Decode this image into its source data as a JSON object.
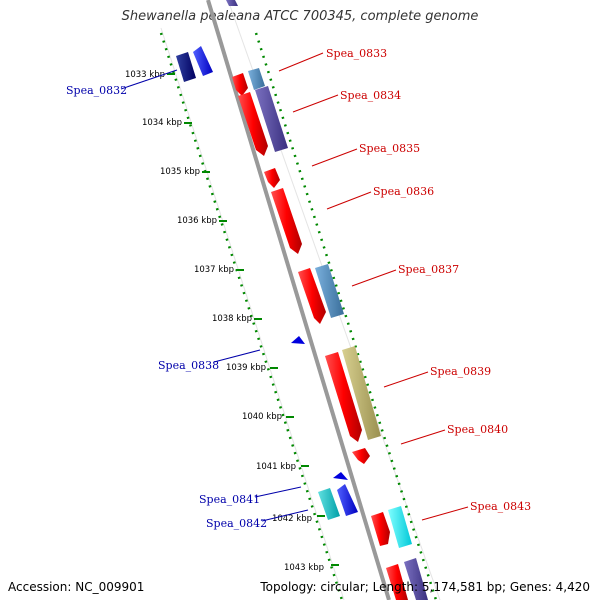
{
  "title": "Shewanella pealeana ATCC 700345, complete genome",
  "accession": "Accession: NC_009901",
  "summary": "Topology: circular; Length: 5,174,581 bp; Genes: 4,420",
  "colors": {
    "forward_label": "#cc0000",
    "reverse_label": "#0000aa",
    "backbone": "#999999",
    "ticks": "#008800"
  },
  "kbp_labels": [
    "1033 kbp",
    "1034 kbp",
    "1035 kbp",
    "1036 kbp",
    "1037 kbp",
    "1038 kbp",
    "1039 kbp",
    "1040 kbp",
    "1041 kbp",
    "1042 kbp",
    "1043 kbp"
  ],
  "genes": [
    {
      "label": "Spea_0832",
      "strand": "reverse"
    },
    {
      "label": "Spea_0833",
      "strand": "forward"
    },
    {
      "label": "Spea_0834",
      "strand": "forward"
    },
    {
      "label": "Spea_0835",
      "strand": "forward"
    },
    {
      "label": "Spea_0836",
      "strand": "forward"
    },
    {
      "label": "Spea_0837",
      "strand": "forward"
    },
    {
      "label": "Spea_0838",
      "strand": "reverse"
    },
    {
      "label": "Spea_0839",
      "strand": "forward"
    },
    {
      "label": "Spea_0840",
      "strand": "forward"
    },
    {
      "label": "Spea_0841",
      "strand": "reverse"
    },
    {
      "label": "Spea_0842",
      "strand": "reverse"
    },
    {
      "label": "Spea_0843",
      "strand": "forward"
    }
  ]
}
